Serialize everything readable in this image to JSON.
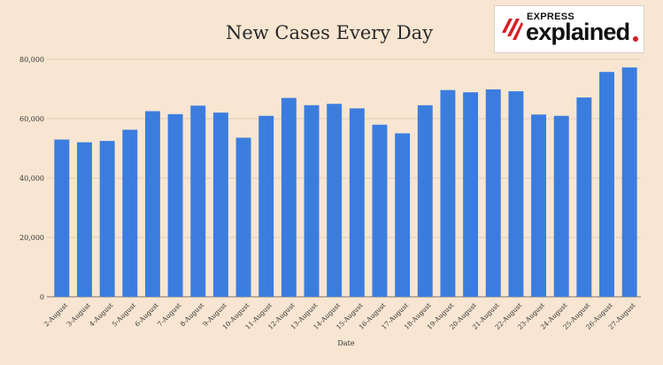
{
  "brand": {
    "line1": "EXPRESS",
    "line2": "explained",
    "accent_color": "#d61f26"
  },
  "colors": {
    "bar": "#3b7ddf",
    "background": "#f8e6d2",
    "grid": "#e2cdb5"
  },
  "chart_data": {
    "type": "bar",
    "title": "New Cases Every Day",
    "xlabel": "Date",
    "ylabel": "",
    "ylim": [
      0,
      80000
    ],
    "yticks": [
      0,
      20000,
      40000,
      60000,
      80000
    ],
    "ytick_labels": [
      "0",
      "20,000",
      "40,000",
      "60,000",
      "80,000"
    ],
    "grid": "horizontal",
    "categories": [
      "2-August",
      "3-August",
      "4-August",
      "5-August",
      "6-August",
      "7-August",
      "8-August",
      "9-August",
      "10-August",
      "11-August",
      "12-August",
      "13-August",
      "14-August",
      "15-August",
      "16-August",
      "17-August",
      "18-August",
      "19-August",
      "20-August",
      "21-August",
      "22-August",
      "23-August",
      "24-August",
      "25-August",
      "26-August",
      "27-August"
    ],
    "values": [
      52972,
      52050,
      52509,
      56282,
      62538,
      61537,
      64399,
      62064,
      53601,
      60963,
      66999,
      64553,
      65002,
      63490,
      57981,
      55079,
      64531,
      69652,
      68900,
      69878,
      69239,
      61408,
      60975,
      67151,
      75760,
      77266
    ]
  }
}
